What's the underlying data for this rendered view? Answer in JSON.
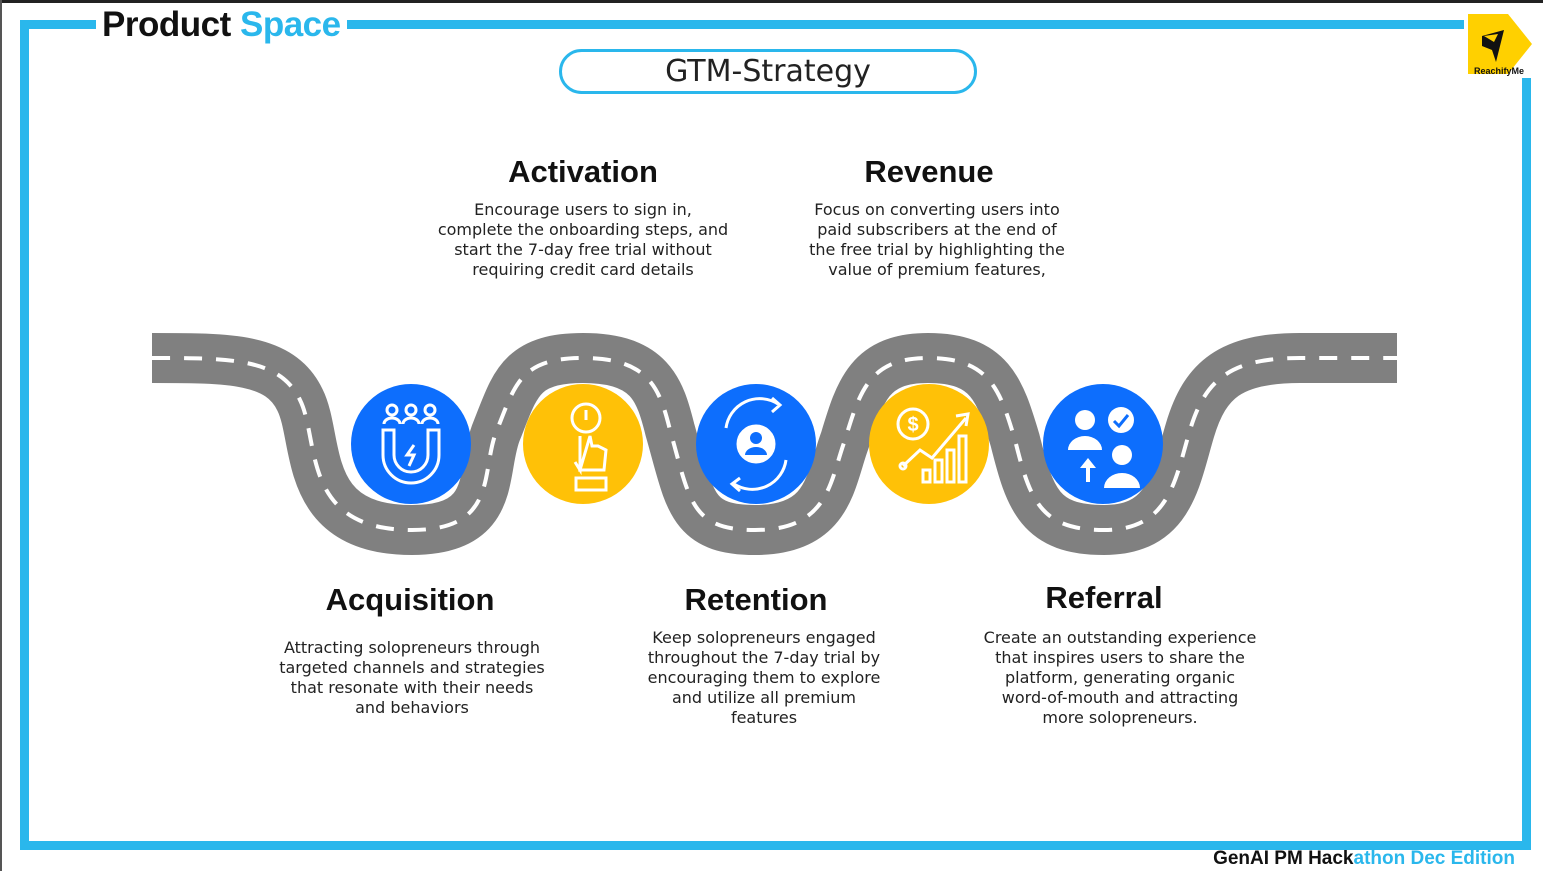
{
  "brand": {
    "word1": "Product",
    "word2": "Space"
  },
  "title": "GTM-Strategy",
  "logo": {
    "name": "ReachifyMe",
    "color": "#ffd000"
  },
  "colors": {
    "accent": "#2ab7ec",
    "blue": "#0d6efd",
    "yellow": "#ffc107",
    "road": "#808080"
  },
  "stages": [
    {
      "title": "Acquisition",
      "icon": "magnet-users-icon",
      "desc_lines": [
        "Attracting solopreneurs through",
        "targeted channels and strategies",
        "that resonate with their needs",
        "and behaviors"
      ]
    },
    {
      "title": "Activation",
      "icon": "power-button-press-icon",
      "desc_lines": [
        "Encourage users to sign in,",
        "complete the onboarding steps, and",
        "start the 7-day free trial without",
        "requiring credit card details"
      ]
    },
    {
      "title": "Retention",
      "icon": "user-cycle-icon",
      "desc_lines": [
        "Keep solopreneurs engaged",
        "throughout the 7-day trial by",
        "encouraging them to explore",
        "and utilize all premium",
        "features"
      ]
    },
    {
      "title": "Revenue",
      "icon": "dollar-growth-chart-icon",
      "desc_lines": [
        "Focus on converting users into",
        "paid subscribers at the end of",
        "the free trial by highlighting the",
        "value of premium features,"
      ]
    },
    {
      "title": "Referral",
      "icon": "users-referral-icon",
      "desc_lines": [
        "Create an outstanding experience",
        "that inspires users to share the",
        "platform, generating organic",
        "word-of-mouth and attracting",
        "more solopreneurs."
      ]
    }
  ],
  "footer": {
    "part1": "GenAI PM Hack",
    "part2": "athon Dec Edition"
  }
}
